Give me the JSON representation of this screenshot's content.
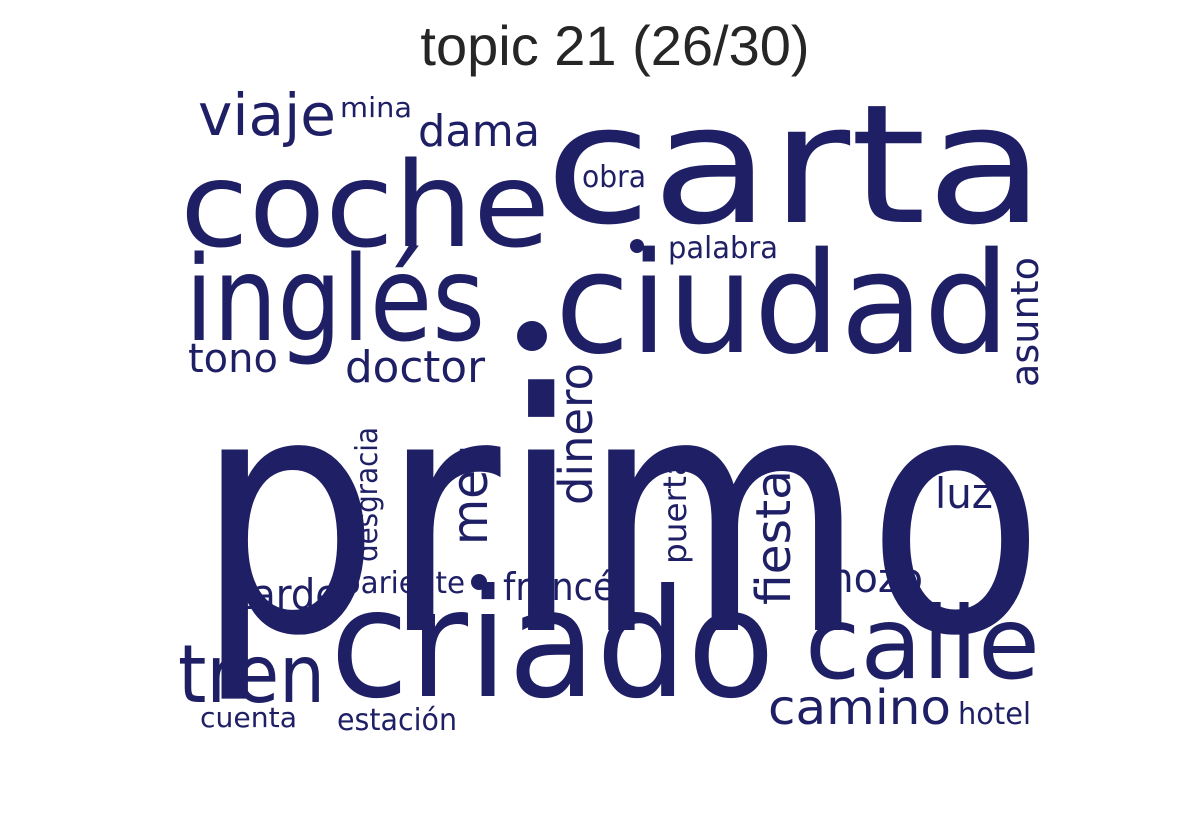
{
  "title": "topic 21 (26/30)",
  "word_color": "#1f1f66",
  "words": [
    {
      "text": "primo"
    },
    {
      "text": "carta"
    },
    {
      "text": "ciudad"
    },
    {
      "text": "criado"
    },
    {
      "text": "coche"
    },
    {
      "text": "inglés"
    },
    {
      "text": "calle"
    },
    {
      "text": "tren"
    },
    {
      "text": "viaje"
    },
    {
      "text": "mina"
    },
    {
      "text": "dama"
    },
    {
      "text": "obra"
    },
    {
      "text": "palabra"
    },
    {
      "text": "asunto"
    },
    {
      "text": "tono"
    },
    {
      "text": "doctor"
    },
    {
      "text": "dinero"
    },
    {
      "text": "desgracia"
    },
    {
      "text": "mes"
    },
    {
      "text": "puerta"
    },
    {
      "text": "fiesta"
    },
    {
      "text": "luz"
    },
    {
      "text": "mozo"
    },
    {
      "text": "tarde"
    },
    {
      "text": "pariente"
    },
    {
      "text": "francés"
    },
    {
      "text": "camino"
    },
    {
      "text": "hotel"
    },
    {
      "text": "cuenta"
    },
    {
      "text": "estación"
    }
  ]
}
